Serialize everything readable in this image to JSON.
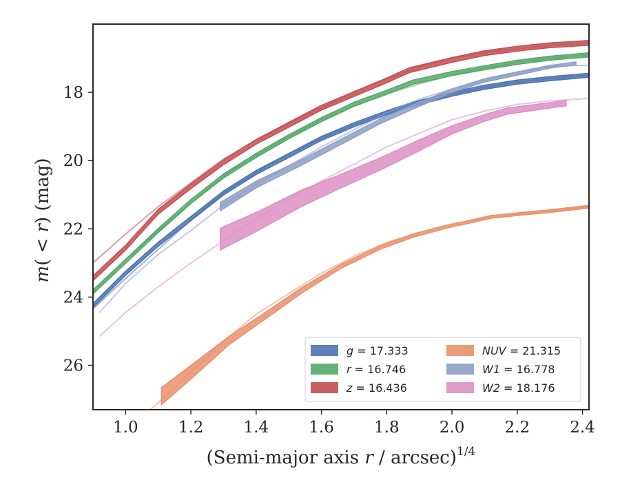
{
  "chart_data": {
    "type": "line",
    "xlabel": "(Semi-major axis r / arcsec)",
    "xlabel_parts": {
      "main": "(Semi-major axis ",
      "var": "r",
      "rest": " / arcsec)",
      "exponent": "1/4"
    },
    "ylabel_parts": {
      "var_m": "m",
      "paren_open": "(",
      "lt": " < ",
      "var_r": "r",
      "paren_close": ")",
      "unit": " (mag)"
    },
    "xlim": [
      0.9,
      2.42
    ],
    "ylim": [
      27.3,
      16.0
    ],
    "y_inverted": true,
    "x_ticks": [
      "1.0",
      "1.2",
      "1.4",
      "1.6",
      "1.8",
      "2.0",
      "2.2",
      "2.4"
    ],
    "y_ticks": [
      "18",
      "20",
      "22",
      "24",
      "26"
    ],
    "legend_position": "lower-right",
    "legend": [
      {
        "label": "g = 17.333",
        "var": "g",
        "value": "17.333",
        "color": "#4c72b0"
      },
      {
        "label": "r = 16.746",
        "var": "r",
        "value": "16.746",
        "color": "#55a868"
      },
      {
        "label": "z = 16.436",
        "var": "z",
        "value": "16.436",
        "color": "#c44e52"
      },
      {
        "label": "NUV = 21.315",
        "var": "NUV",
        "value": "21.315",
        "color": "#e8916c"
      },
      {
        "label": "W1 = 16.778",
        "var": "W1",
        "value": "16.778",
        "color": "#8c9fc4"
      },
      {
        "label": "W2 = 18.176",
        "var": "W2",
        "value": "18.176",
        "color": "#dd8fc3"
      }
    ],
    "series": [
      {
        "name": "g",
        "color": "#4c72b0",
        "model": [
          [
            0.9,
            24.35
          ],
          [
            1.0,
            23.45
          ],
          [
            1.1,
            22.6
          ],
          [
            1.2,
            21.75
          ],
          [
            1.3,
            20.95
          ],
          [
            1.4,
            20.35
          ],
          [
            1.5,
            19.8
          ],
          [
            1.6,
            19.35
          ],
          [
            1.7,
            18.95
          ],
          [
            1.8,
            18.6
          ],
          [
            1.9,
            18.3
          ],
          [
            2.0,
            18.05
          ],
          [
            2.1,
            17.85
          ],
          [
            2.2,
            17.7
          ],
          [
            2.3,
            17.6
          ],
          [
            2.42,
            17.5
          ]
        ],
        "measured": [
          [
            0.9,
            24.25
          ],
          [
            1.0,
            23.3
          ],
          [
            1.1,
            22.45
          ],
          [
            1.2,
            21.7
          ],
          [
            1.3,
            20.95
          ],
          [
            1.4,
            20.35
          ],
          [
            1.5,
            19.85
          ],
          [
            1.6,
            19.35
          ],
          [
            1.7,
            18.95
          ],
          [
            1.8,
            18.6
          ],
          [
            1.88,
            18.35
          ],
          [
            2.0,
            18.05
          ],
          [
            2.1,
            17.85
          ],
          [
            2.2,
            17.7
          ],
          [
            2.3,
            17.6
          ],
          [
            2.42,
            17.5
          ]
        ],
        "band_half_width": 0.06
      },
      {
        "name": "r",
        "color": "#55a868",
        "model": [
          [
            0.9,
            23.8
          ],
          [
            1.0,
            22.9
          ],
          [
            1.1,
            22.05
          ],
          [
            1.2,
            21.25
          ],
          [
            1.3,
            20.45
          ],
          [
            1.4,
            19.85
          ],
          [
            1.5,
            19.3
          ],
          [
            1.6,
            18.8
          ],
          [
            1.7,
            18.4
          ],
          [
            1.8,
            18.05
          ],
          [
            1.9,
            17.75
          ],
          [
            2.0,
            17.5
          ],
          [
            2.1,
            17.3
          ],
          [
            2.2,
            17.12
          ],
          [
            2.3,
            17.0
          ],
          [
            2.42,
            16.9
          ]
        ],
        "measured": [
          [
            0.9,
            23.85
          ],
          [
            1.0,
            22.95
          ],
          [
            1.1,
            22.05
          ],
          [
            1.2,
            21.2
          ],
          [
            1.3,
            20.45
          ],
          [
            1.4,
            19.85
          ],
          [
            1.5,
            19.3
          ],
          [
            1.6,
            18.8
          ],
          [
            1.7,
            18.35
          ],
          [
            1.8,
            18.0
          ],
          [
            1.88,
            17.7
          ],
          [
            2.0,
            17.45
          ],
          [
            2.1,
            17.28
          ],
          [
            2.2,
            17.12
          ],
          [
            2.3,
            17.0
          ],
          [
            2.42,
            16.9
          ]
        ],
        "band_half_width": 0.06
      },
      {
        "name": "z",
        "color": "#c44e52",
        "model": [
          [
            0.9,
            23.0
          ],
          [
            1.0,
            22.15
          ],
          [
            1.1,
            21.35
          ],
          [
            1.2,
            20.65
          ],
          [
            1.3,
            19.95
          ],
          [
            1.4,
            19.4
          ],
          [
            1.5,
            18.9
          ],
          [
            1.6,
            18.45
          ],
          [
            1.7,
            18.0
          ],
          [
            1.8,
            17.6
          ],
          [
            1.9,
            17.25
          ],
          [
            2.0,
            17.0
          ],
          [
            2.1,
            16.83
          ],
          [
            2.2,
            16.72
          ],
          [
            2.3,
            16.62
          ],
          [
            2.42,
            16.55
          ]
        ],
        "measured": [
          [
            0.9,
            23.45
          ],
          [
            1.0,
            22.55
          ],
          [
            1.1,
            21.5
          ],
          [
            1.2,
            20.75
          ],
          [
            1.3,
            20.05
          ],
          [
            1.4,
            19.45
          ],
          [
            1.5,
            18.95
          ],
          [
            1.6,
            18.45
          ],
          [
            1.7,
            18.05
          ],
          [
            1.8,
            17.65
          ],
          [
            1.87,
            17.35
          ],
          [
            2.0,
            17.05
          ],
          [
            2.1,
            16.85
          ],
          [
            2.2,
            16.72
          ],
          [
            2.3,
            16.62
          ],
          [
            2.42,
            16.55
          ]
        ],
        "band_half_width": 0.07
      },
      {
        "name": "NUV",
        "color": "#e8916c",
        "model": [
          [
            0.9,
            28.6
          ],
          [
            1.0,
            27.9
          ],
          [
            1.1,
            27.1
          ],
          [
            1.2,
            26.2
          ],
          [
            1.3,
            25.3
          ],
          [
            1.4,
            24.5
          ],
          [
            1.5,
            23.9
          ],
          [
            1.6,
            23.3
          ],
          [
            1.7,
            22.8
          ],
          [
            1.8,
            22.4
          ],
          [
            1.9,
            22.1
          ],
          [
            2.0,
            21.85
          ],
          [
            2.1,
            21.7
          ],
          [
            2.2,
            21.58
          ],
          [
            2.3,
            21.48
          ],
          [
            2.42,
            21.35
          ]
        ],
        "measured": [
          [
            1.11,
            26.9
          ],
          [
            1.2,
            26.2
          ],
          [
            1.32,
            25.25
          ],
          [
            1.42,
            24.6
          ],
          [
            1.54,
            23.8
          ],
          [
            1.66,
            23.1
          ],
          [
            1.78,
            22.55
          ],
          [
            1.88,
            22.2
          ],
          [
            1.98,
            21.95
          ],
          [
            2.06,
            21.78
          ],
          [
            2.12,
            21.65
          ],
          [
            2.2,
            21.57
          ],
          [
            2.3,
            21.48
          ],
          [
            2.42,
            21.35
          ]
        ],
        "band_half_width": [
          0.25,
          0.2,
          0.12,
          0.1,
          0.08,
          0.06,
          0.05,
          0.05,
          0.04,
          0.04,
          0.04,
          0.04,
          0.04,
          0.04
        ]
      },
      {
        "name": "W1",
        "color": "#8c9fc4",
        "model": [
          [
            0.92,
            24.45
          ],
          [
            1.0,
            23.6
          ],
          [
            1.1,
            22.75
          ],
          [
            1.2,
            22.05
          ],
          [
            1.3,
            21.3
          ],
          [
            1.4,
            20.7
          ],
          [
            1.5,
            20.15
          ],
          [
            1.6,
            19.6
          ],
          [
            1.7,
            19.1
          ],
          [
            1.8,
            18.6
          ],
          [
            1.9,
            18.2
          ],
          [
            2.0,
            17.9
          ],
          [
            2.1,
            17.65
          ],
          [
            2.2,
            17.42
          ],
          [
            2.3,
            17.25
          ],
          [
            2.42,
            17.2
          ]
        ],
        "measured": [
          [
            1.29,
            21.35
          ],
          [
            1.4,
            20.7
          ],
          [
            1.54,
            20.05
          ],
          [
            1.66,
            19.45
          ],
          [
            1.78,
            18.85
          ],
          [
            1.9,
            18.35
          ],
          [
            2.0,
            17.95
          ],
          [
            2.1,
            17.65
          ],
          [
            2.2,
            17.45
          ],
          [
            2.3,
            17.25
          ],
          [
            2.38,
            17.15
          ]
        ],
        "band_half_width": [
          0.12,
          0.1,
          0.08,
          0.08,
          0.07,
          0.06,
          0.05,
          0.05,
          0.05,
          0.04,
          0.04
        ]
      },
      {
        "name": "W2",
        "color": "#dd8fc3",
        "model": [
          [
            0.92,
            25.15
          ],
          [
            1.0,
            24.45
          ],
          [
            1.1,
            23.7
          ],
          [
            1.2,
            23.0
          ],
          [
            1.3,
            22.35
          ],
          [
            1.4,
            21.7
          ],
          [
            1.5,
            21.15
          ],
          [
            1.6,
            20.6
          ],
          [
            1.7,
            20.1
          ],
          [
            1.8,
            19.6
          ],
          [
            1.9,
            19.2
          ],
          [
            2.0,
            18.8
          ],
          [
            2.1,
            18.55
          ],
          [
            2.2,
            18.35
          ],
          [
            2.3,
            18.25
          ],
          [
            2.42,
            18.18
          ]
        ],
        "measured": [
          [
            1.29,
            22.3
          ],
          [
            1.4,
            21.8
          ],
          [
            1.54,
            21.1
          ],
          [
            1.66,
            20.6
          ],
          [
            1.78,
            20.1
          ],
          [
            1.9,
            19.55
          ],
          [
            2.0,
            19.1
          ],
          [
            2.1,
            18.75
          ],
          [
            2.17,
            18.55
          ],
          [
            2.3,
            18.38
          ],
          [
            2.35,
            18.32
          ]
        ],
        "band_half_width": [
          0.32,
          0.28,
          0.24,
          0.2,
          0.18,
          0.16,
          0.12,
          0.1,
          0.09,
          0.08,
          0.08
        ]
      }
    ]
  }
}
